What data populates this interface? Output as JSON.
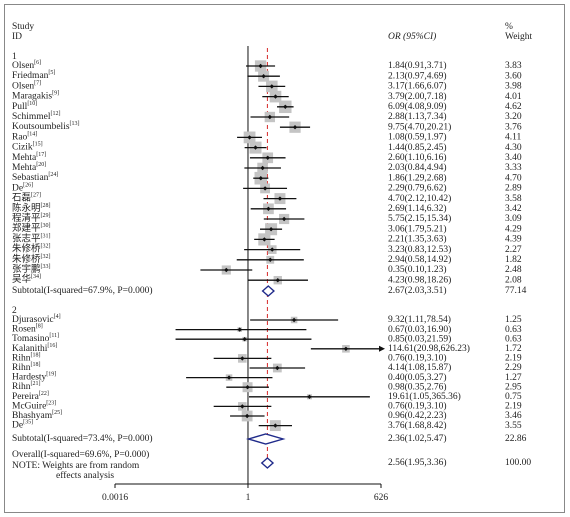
{
  "chart_data": {
    "type": "forest",
    "header": {
      "study": "Study",
      "id": "ID",
      "effect": "OR (95%CI)",
      "weight_title": "%",
      "weight_sub": "Weight"
    },
    "xscale": "log",
    "xlim": [
      0.0016,
      626
    ],
    "xticks": [
      0.0016,
      1,
      626
    ],
    "null_line": 1,
    "square_color": "#c4c4c4",
    "line_color": "#111111",
    "diamond_color": "#1f2a8a",
    "overall_line_color": "#d62828",
    "groups": [
      {
        "label": "1",
        "studies": [
          {
            "name": "Olsen",
            "ref": "[6]",
            "or": 1.84,
            "lo": 0.91,
            "hi": 3.71,
            "label": "1.84(0.91,3.71)",
            "weight": 3.83,
            "weight_label": "3.83"
          },
          {
            "name": "Friedman",
            "ref": "[5]",
            "or": 2.13,
            "lo": 0.97,
            "hi": 4.69,
            "label": "2.13(0.97,4.69)",
            "weight": 3.6,
            "weight_label": "3.60"
          },
          {
            "name": "Olsen",
            "ref": "[7]",
            "or": 3.17,
            "lo": 1.66,
            "hi": 6.07,
            "label": "3.17(1.66,6.07)",
            "weight": 3.98,
            "weight_label": "3.98"
          },
          {
            "name": "Maragakis",
            "ref": "[9]",
            "or": 3.79,
            "lo": 2.0,
            "hi": 7.18,
            "label": "3.79(2.00,7.18)",
            "weight": 4.01,
            "weight_label": "4.01"
          },
          {
            "name": "Pull",
            "ref": "[10]",
            "or": 6.09,
            "lo": 4.08,
            "hi": 9.09,
            "label": "6.09(4.08,9.09)",
            "weight": 4.62,
            "weight_label": "4.62"
          },
          {
            "name": "Schimmel",
            "ref": "[12]",
            "or": 2.88,
            "lo": 1.13,
            "hi": 7.34,
            "label": "2.88(1.13,7.34)",
            "weight": 3.2,
            "weight_label": "3.20"
          },
          {
            "name": "Koutsoumbelis",
            "ref": "[13]",
            "or": 9.75,
            "lo": 4.7,
            "hi": 20.21,
            "label": "9.75(4.70,20.21)",
            "weight": 3.76,
            "weight_label": "3.76"
          },
          {
            "name": "Rao",
            "ref": "[14]",
            "or": 1.08,
            "lo": 0.59,
            "hi": 1.97,
            "label": "1.08(0.59,1.97)",
            "weight": 4.11,
            "weight_label": "4.11"
          },
          {
            "name": "Cizik",
            "ref": "[15]",
            "or": 1.44,
            "lo": 0.85,
            "hi": 2.45,
            "label": "1.44(0.85,2.45)",
            "weight": 4.3,
            "weight_label": "4.30"
          },
          {
            "name": "Mehta",
            "ref": "[17]",
            "or": 2.6,
            "lo": 1.1,
            "hi": 6.16,
            "label": "2.60(1.10,6.16)",
            "weight": 3.4,
            "weight_label": "3.40"
          },
          {
            "name": "Mehta",
            "ref": "[20]",
            "or": 2.03,
            "lo": 0.84,
            "hi": 4.94,
            "label": "2.03(0.84,4.94)",
            "weight": 3.33,
            "weight_label": "3.33"
          },
          {
            "name": "Sebastian",
            "ref": "[24]",
            "or": 1.86,
            "lo": 1.29,
            "hi": 2.68,
            "label": "1.86(1.29,2.68)",
            "weight": 4.7,
            "weight_label": "4.70"
          },
          {
            "name": "De",
            "ref": "[26]",
            "or": 2.29,
            "lo": 0.79,
            "hi": 6.62,
            "label": "2.29(0.79,6.62)",
            "weight": 2.89,
            "weight_label": "2.89"
          },
          {
            "name": "石磊",
            "ref": "[27]",
            "or": 4.7,
            "lo": 2.12,
            "hi": 10.42,
            "label": "4.70(2.12,10.42)",
            "weight": 3.58,
            "weight_label": "3.58"
          },
          {
            "name": "陈永明",
            "ref": "[28]",
            "or": 2.69,
            "lo": 1.14,
            "hi": 6.32,
            "label": "2.69(1.14,6.32)",
            "weight": 3.42,
            "weight_label": "3.42"
          },
          {
            "name": "程清平",
            "ref": "[29]",
            "or": 5.75,
            "lo": 2.15,
            "hi": 15.34,
            "label": "5.75(2.15,15.34)",
            "weight": 3.09,
            "weight_label": "3.09"
          },
          {
            "name": "郑建平",
            "ref": "[30]",
            "or": 3.06,
            "lo": 1.79,
            "hi": 5.21,
            "label": "3.06(1.79,5.21)",
            "weight": 4.29,
            "weight_label": "4.29"
          },
          {
            "name": "张志平",
            "ref": "[31]",
            "or": 2.21,
            "lo": 1.35,
            "hi": 3.63,
            "label": "2.21(1.35,3.63)",
            "weight": 4.39,
            "weight_label": "4.39"
          },
          {
            "name": "朱修桥",
            "ref": "[32]",
            "or": 3.23,
            "lo": 0.83,
            "hi": 12.53,
            "label": "3.23(0.83,12.53)",
            "weight": 2.27,
            "weight_label": "2.27"
          },
          {
            "name": "朱修桥",
            "ref": "[32]",
            "or": 2.94,
            "lo": 0.58,
            "hi": 14.92,
            "label": "2.94(0.58,14.92)",
            "weight": 1.82,
            "weight_label": "1.82"
          },
          {
            "name": "张宇鹏",
            "ref": "[33]",
            "or": 0.35,
            "lo": 0.1,
            "hi": 1.23,
            "label": "0.35(0.10,1.23)",
            "weight": 2.48,
            "weight_label": "2.48"
          },
          {
            "name": "吴华",
            "ref": "[34]",
            "or": 4.23,
            "lo": 0.98,
            "hi": 18.26,
            "label": "4.23(0.98,18.26)",
            "weight": 2.08,
            "weight_label": "2.08"
          }
        ],
        "subtotal": {
          "name": "Subtotal(I-squared=67.9%, P=0.000)",
          "or": 2.67,
          "lo": 2.03,
          "hi": 3.51,
          "label": "2.67(2.03,3.51)",
          "weight": 77.14,
          "weight_label": "77.14"
        }
      },
      {
        "label": "2",
        "studies": [
          {
            "name": "Djurasovic",
            "ref": "[4]",
            "or": 9.32,
            "lo": 1.11,
            "hi": 78.54,
            "label": "9.32(1.11,78.54)",
            "weight": 1.25,
            "weight_label": "1.25"
          },
          {
            "name": "Rosen",
            "ref": "[8]",
            "or": 0.67,
            "lo": 0.03,
            "hi": 16.9,
            "label": "0.67(0.03,16.90)",
            "weight": 0.63,
            "weight_label": "0.63"
          },
          {
            "name": "Tomasino",
            "ref": "[11]",
            "or": 0.85,
            "lo": 0.03,
            "hi": 21.59,
            "label": "0.85(0.03,21.59)",
            "weight": 0.63,
            "weight_label": "0.63"
          },
          {
            "name": "Kalanithi",
            "ref": "[16]",
            "or": 114.61,
            "lo": 20.98,
            "hi": 626.23,
            "label": "114.61(20.98,626.23)",
            "weight": 1.72,
            "weight_label": "1.72"
          },
          {
            "name": "Rihn",
            "ref": "[18]",
            "or": 0.76,
            "lo": 0.19,
            "hi": 3.1,
            "label": "0.76(0.19,3.10)",
            "weight": 2.19,
            "weight_label": "2.19"
          },
          {
            "name": "Rihn",
            "ref": "[18]",
            "or": 4.14,
            "lo": 1.08,
            "hi": 15.87,
            "label": "4.14(1.08,15.87)",
            "weight": 2.29,
            "weight_label": "2.29"
          },
          {
            "name": "Hardesty",
            "ref": "[19]",
            "or": 0.4,
            "lo": 0.05,
            "hi": 3.27,
            "label": "0.40(0.05,3.27)",
            "weight": 1.27,
            "weight_label": "1.27"
          },
          {
            "name": "Rihn",
            "ref": "[21]",
            "or": 0.98,
            "lo": 0.35,
            "hi": 2.76,
            "label": "0.98(0.35,2.76)",
            "weight": 2.95,
            "weight_label": "2.95"
          },
          {
            "name": "Pereira",
            "ref": "[22]",
            "or": 19.61,
            "lo": 1.05,
            "hi": 365.36,
            "label": "19.61(1.05,365.36)",
            "weight": 0.75,
            "weight_label": "0.75"
          },
          {
            "name": "McGuire",
            "ref": "[23]",
            "or": 0.76,
            "lo": 0.19,
            "hi": 3.1,
            "label": "0.76(0.19,3.10)",
            "weight": 2.19,
            "weight_label": "2.19"
          },
          {
            "name": "Bhashyam",
            "ref": "[25]",
            "or": 0.96,
            "lo": 0.42,
            "hi": 2.23,
            "label": "0.96(0.42,2.23)",
            "weight": 3.46,
            "weight_label": "3.46"
          },
          {
            "name": "De",
            "ref": "[35]",
            "or": 3.76,
            "lo": 1.68,
            "hi": 8.42,
            "label": "3.76(1.68,8.42)",
            "weight": 3.55,
            "weight_label": "3.55"
          }
        ],
        "subtotal": {
          "name": "Subtotal(I-squared=73.4%, P=0.000)",
          "or": 2.36,
          "lo": 1.02,
          "hi": 5.47,
          "label": "2.36(1.02,5.47)",
          "weight": 22.86,
          "weight_label": "22.86"
        }
      }
    ],
    "overall": {
      "name": "Overall(I-squared=69.6%, P=0.000)",
      "note": [
        "NOTE: Weights are from random",
        "effects analysis"
      ],
      "or": 2.56,
      "lo": 1.95,
      "hi": 3.36,
      "label": "2.56(1.95,3.36)",
      "weight": 100,
      "weight_label": "100.00"
    }
  }
}
